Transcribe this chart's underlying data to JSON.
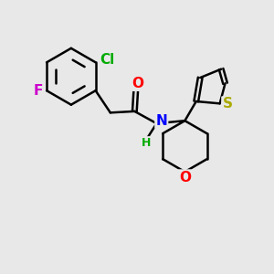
{
  "background_color": "#e8e8e8",
  "bond_color": "#000000",
  "bond_width": 1.8,
  "atom_labels": {
    "Cl": {
      "color": "#00aa00",
      "fontsize": 11
    },
    "F": {
      "color": "#cc00cc",
      "fontsize": 11
    },
    "O_amide": {
      "color": "#ff0000",
      "fontsize": 11
    },
    "N": {
      "color": "#0000ff",
      "fontsize": 11
    },
    "H": {
      "color": "#00aa00",
      "fontsize": 9
    },
    "S": {
      "color": "#aaaa00",
      "fontsize": 11
    },
    "O_ring": {
      "color": "#ff0000",
      "fontsize": 11
    }
  },
  "figsize": [
    3.0,
    3.0
  ],
  "dpi": 100,
  "xlim": [
    0,
    10
  ],
  "ylim": [
    0,
    10
  ]
}
